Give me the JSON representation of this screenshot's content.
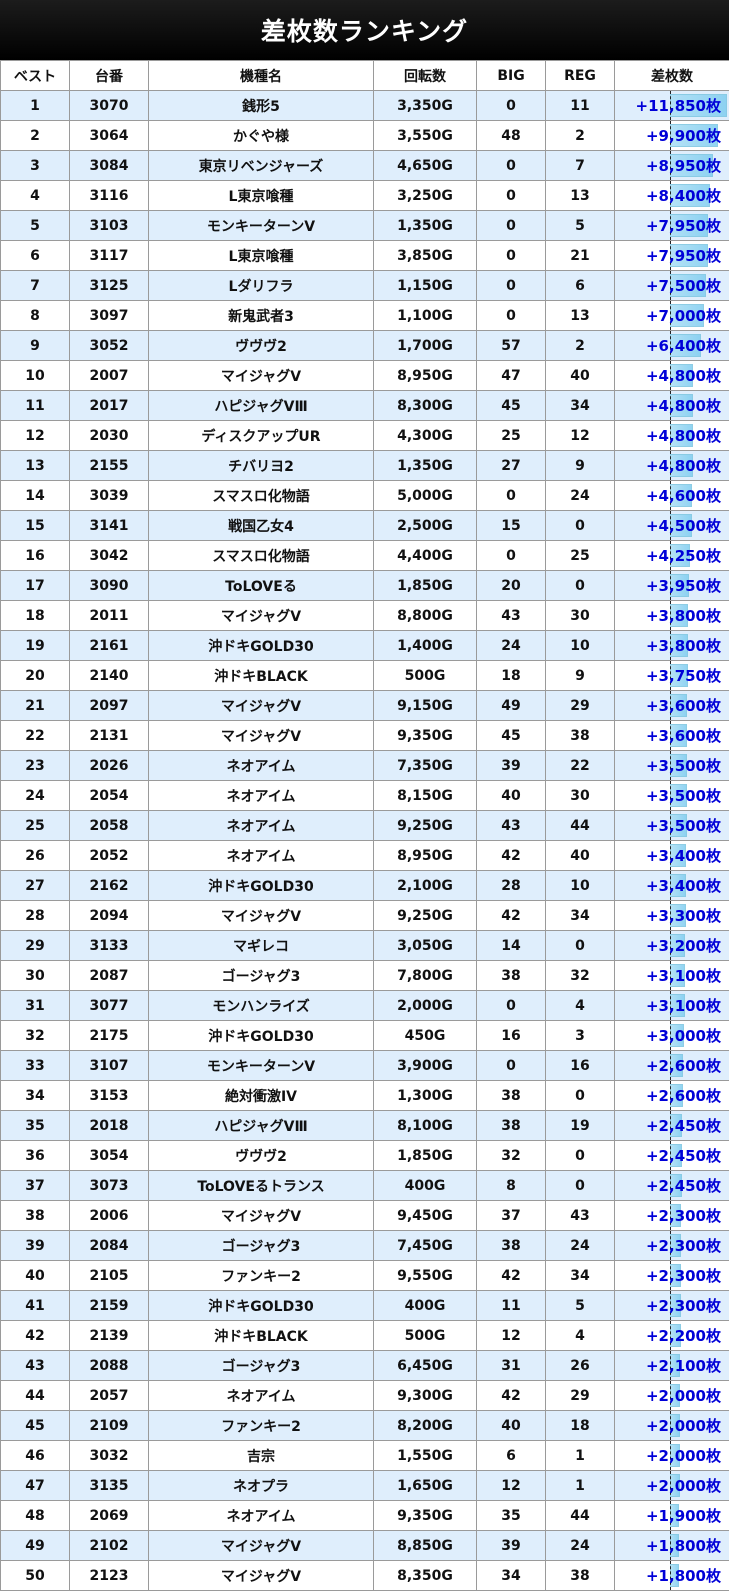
{
  "title": "差枚数ランキング",
  "headers": [
    "ベスト",
    "台番",
    "機種名",
    "回転数",
    "BIG",
    "REG",
    "差枚数"
  ],
  "colors": {
    "title_bg": "#000000",
    "odd_row": "#dfeefc",
    "diff_text": "#0000d8",
    "bar": "#8fd3f2"
  },
  "rows": [
    [
      "1",
      "3070",
      "銭形5",
      "3,350G",
      "0",
      "11",
      "+11,850枚"
    ],
    [
      "2",
      "3064",
      "かぐや様",
      "3,550G",
      "48",
      "2",
      "+9,900枚"
    ],
    [
      "3",
      "3084",
      "東京リベンジャーズ",
      "4,650G",
      "0",
      "7",
      "+8,950枚"
    ],
    [
      "4",
      "3116",
      "L東京喰種",
      "3,250G",
      "0",
      "13",
      "+8,400枚"
    ],
    [
      "5",
      "3103",
      "モンキーターンV",
      "1,350G",
      "0",
      "5",
      "+7,950枚"
    ],
    [
      "6",
      "3117",
      "L東京喰種",
      "3,850G",
      "0",
      "21",
      "+7,950枚"
    ],
    [
      "7",
      "3125",
      "Lダリフラ",
      "1,150G",
      "0",
      "6",
      "+7,500枚"
    ],
    [
      "8",
      "3097",
      "新鬼武者3",
      "1,100G",
      "0",
      "13",
      "+7,000枚"
    ],
    [
      "9",
      "3052",
      "ヴヴヴ2",
      "1,700G",
      "57",
      "2",
      "+6,400枚"
    ],
    [
      "10",
      "2007",
      "マイジャグV",
      "8,950G",
      "47",
      "40",
      "+4,800枚"
    ],
    [
      "11",
      "2017",
      "ハピジャグVⅢ",
      "8,300G",
      "45",
      "34",
      "+4,800枚"
    ],
    [
      "12",
      "2030",
      "ディスクアップUR",
      "4,300G",
      "25",
      "12",
      "+4,800枚"
    ],
    [
      "13",
      "2155",
      "チバリヨ2",
      "1,350G",
      "27",
      "9",
      "+4,800枚"
    ],
    [
      "14",
      "3039",
      "スマスロ化物語",
      "5,000G",
      "0",
      "24",
      "+4,600枚"
    ],
    [
      "15",
      "3141",
      "戦国乙女4",
      "2,500G",
      "15",
      "0",
      "+4,500枚"
    ],
    [
      "16",
      "3042",
      "スマスロ化物語",
      "4,400G",
      "0",
      "25",
      "+4,250枚"
    ],
    [
      "17",
      "3090",
      "ToLOVEる",
      "1,850G",
      "20",
      "0",
      "+3,950枚"
    ],
    [
      "18",
      "2011",
      "マイジャグV",
      "8,800G",
      "43",
      "30",
      "+3,800枚"
    ],
    [
      "19",
      "2161",
      "沖ドキGOLD30",
      "1,400G",
      "24",
      "10",
      "+3,800枚"
    ],
    [
      "20",
      "2140",
      "沖ドキBLACK",
      "500G",
      "18",
      "9",
      "+3,750枚"
    ],
    [
      "21",
      "2097",
      "マイジャグV",
      "9,150G",
      "49",
      "29",
      "+3,600枚"
    ],
    [
      "22",
      "2131",
      "マイジャグV",
      "9,350G",
      "45",
      "38",
      "+3,600枚"
    ],
    [
      "23",
      "2026",
      "ネオアイム",
      "7,350G",
      "39",
      "22",
      "+3,500枚"
    ],
    [
      "24",
      "2054",
      "ネオアイム",
      "8,150G",
      "40",
      "30",
      "+3,500枚"
    ],
    [
      "25",
      "2058",
      "ネオアイム",
      "9,250G",
      "43",
      "44",
      "+3,500枚"
    ],
    [
      "26",
      "2052",
      "ネオアイム",
      "8,950G",
      "42",
      "40",
      "+3,400枚"
    ],
    [
      "27",
      "2162",
      "沖ドキGOLD30",
      "2,100G",
      "28",
      "10",
      "+3,400枚"
    ],
    [
      "28",
      "2094",
      "マイジャグV",
      "9,250G",
      "42",
      "34",
      "+3,300枚"
    ],
    [
      "29",
      "3133",
      "マギレコ",
      "3,050G",
      "14",
      "0",
      "+3,200枚"
    ],
    [
      "30",
      "2087",
      "ゴージャグ3",
      "7,800G",
      "38",
      "32",
      "+3,100枚"
    ],
    [
      "31",
      "3077",
      "モンハンライズ",
      "2,000G",
      "0",
      "4",
      "+3,100枚"
    ],
    [
      "32",
      "2175",
      "沖ドキGOLD30",
      "450G",
      "16",
      "3",
      "+3,000枚"
    ],
    [
      "33",
      "3107",
      "モンキーターンV",
      "3,900G",
      "0",
      "16",
      "+2,600枚"
    ],
    [
      "34",
      "3153",
      "絶対衝激IV",
      "1,300G",
      "38",
      "0",
      "+2,600枚"
    ],
    [
      "35",
      "2018",
      "ハピジャグVⅢ",
      "8,100G",
      "38",
      "19",
      "+2,450枚"
    ],
    [
      "36",
      "3054",
      "ヴヴヴ2",
      "1,850G",
      "32",
      "0",
      "+2,450枚"
    ],
    [
      "37",
      "3073",
      "ToLOVEるトランス",
      "400G",
      "8",
      "0",
      "+2,450枚"
    ],
    [
      "38",
      "2006",
      "マイジャグV",
      "9,450G",
      "37",
      "43",
      "+2,300枚"
    ],
    [
      "39",
      "2084",
      "ゴージャグ3",
      "7,450G",
      "38",
      "24",
      "+2,300枚"
    ],
    [
      "40",
      "2105",
      "ファンキー2",
      "9,550G",
      "42",
      "34",
      "+2,300枚"
    ],
    [
      "41",
      "2159",
      "沖ドキGOLD30",
      "400G",
      "11",
      "5",
      "+2,300枚"
    ],
    [
      "42",
      "2139",
      "沖ドキBLACK",
      "500G",
      "12",
      "4",
      "+2,200枚"
    ],
    [
      "43",
      "2088",
      "ゴージャグ3",
      "6,450G",
      "31",
      "26",
      "+2,100枚"
    ],
    [
      "44",
      "2057",
      "ネオアイム",
      "9,300G",
      "42",
      "29",
      "+2,000枚"
    ],
    [
      "45",
      "2109",
      "ファンキー2",
      "8,200G",
      "40",
      "18",
      "+2,000枚"
    ],
    [
      "46",
      "3032",
      "吉宗",
      "1,550G",
      "6",
      "1",
      "+2,000枚"
    ],
    [
      "47",
      "3135",
      "ネオプラ",
      "1,650G",
      "12",
      "1",
      "+2,000枚"
    ],
    [
      "48",
      "2069",
      "ネオアイム",
      "9,350G",
      "35",
      "44",
      "+1,900枚"
    ],
    [
      "49",
      "2102",
      "マイジャグV",
      "8,850G",
      "39",
      "24",
      "+1,800枚"
    ],
    [
      "50",
      "2123",
      "マイジャグV",
      "8,350G",
      "34",
      "38",
      "+1,800枚"
    ]
  ]
}
